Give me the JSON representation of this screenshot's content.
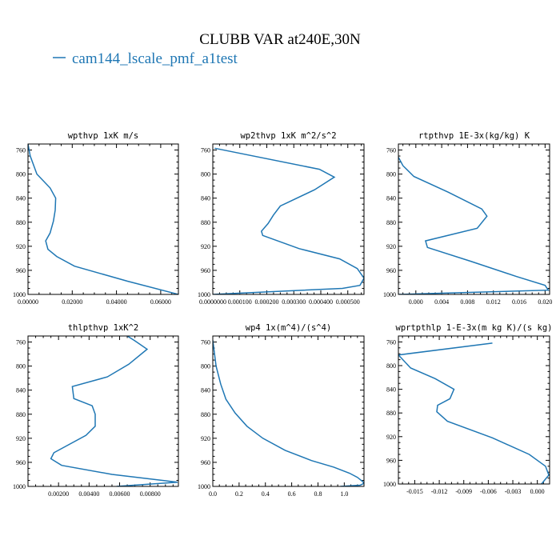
{
  "figure": {
    "title": "CLUBB VAR at240E,30N",
    "legend_label": "cam144_lscale_pmf_a1test",
    "legend_color": "#1f77b4"
  },
  "chart_data": [
    {
      "type": "line",
      "title": "wpthvp  1xK m/s",
      "xlim": [
        0,
        0.068
      ],
      "ylim": [
        1000,
        750
      ],
      "xticks": [
        0.0,
        0.02,
        0.04,
        0.06
      ],
      "xticklabels": [
        "0.00000",
        "0.02000",
        "0.04000",
        "0.06000"
      ],
      "yticks": [
        760,
        800,
        840,
        880,
        920,
        960,
        1000
      ],
      "yticklabels": [
        "760",
        "800",
        "840",
        "880",
        "920",
        "960",
        "1000"
      ],
      "series": [
        {
          "color": "#1f77b4",
          "x": [
            0.0,
            0.001,
            0.004,
            0.01,
            0.0125,
            0.0123,
            0.0115,
            0.01,
            0.008,
            0.009,
            0.013,
            0.021,
            0.045,
            0.068
          ],
          "y": [
            750,
            770,
            800,
            823,
            840,
            860,
            878,
            898,
            911,
            925,
            937,
            953,
            978,
            1000
          ]
        }
      ]
    },
    {
      "type": "line",
      "title": "wp2thvp  1xK m^2/s^2",
      "xlim": [
        0,
        0.00056
      ],
      "ylim": [
        1000,
        750
      ],
      "xticks": [
        0,
        0.0001,
        0.0002,
        0.0003,
        0.0004,
        0.0005
      ],
      "xticklabels": [
        "0.0000000",
        "0.000100",
        "0.000200",
        "0.000300",
        "0.000400",
        "0.000500"
      ],
      "yticks": [
        760,
        800,
        840,
        880,
        920,
        960,
        1000
      ],
      "yticklabels": [
        "760",
        "800",
        "840",
        "880",
        "920",
        "960",
        "1000"
      ],
      "series": [
        {
          "color": "#1f77b4",
          "x": [
            7e-06,
            0.000395,
            0.00045,
            0.000377,
            0.00025,
            0.000225,
            0.000205,
            0.00018,
            0.000185,
            0.00032,
            0.00047,
            0.000535,
            0.00056,
            0.000545,
            0.00048,
            0.0
          ],
          "y": [
            757,
            792,
            805,
            826,
            853,
            868,
            882,
            895,
            902,
            924,
            941,
            957,
            973,
            985,
            990,
            1000
          ]
        }
      ]
    },
    {
      "type": "line",
      "title": "rtpthvp  1E-3x(kg/kg) K",
      "xlim": [
        -0.0027,
        0.0207
      ],
      "ylim": [
        1000,
        750
      ],
      "xticks": [
        0.0,
        0.004,
        0.008,
        0.012,
        0.016,
        0.02
      ],
      "xticklabels": [
        "0.000",
        "0.004",
        "0.008",
        "0.012",
        "0.016",
        "0.020"
      ],
      "yticks": [
        760,
        800,
        840,
        880,
        920,
        960,
        1000
      ],
      "yticklabels": [
        "760",
        "800",
        "840",
        "880",
        "920",
        "960",
        "1000"
      ],
      "series": [
        {
          "color": "#1f77b4",
          "x": [
            -0.0027,
            -0.002,
            -0.0003,
            0.005,
            0.0102,
            0.011,
            0.0095,
            0.0015,
            0.0018,
            0.0085,
            0.0155,
            0.02,
            0.0205,
            -0.0027
          ],
          "y": [
            772,
            786,
            804,
            830,
            858,
            870,
            890,
            911,
            922,
            945,
            970,
            985,
            993,
            1000
          ]
        }
      ]
    },
    {
      "type": "line",
      "title": "thlpthvp  1xK^2",
      "xlim": [
        0,
        0.00985
      ],
      "ylim": [
        1000,
        750
      ],
      "xticks": [
        0.002,
        0.004,
        0.006,
        0.008
      ],
      "xticklabels": [
        "0.00200",
        "0.00400",
        "0.00600",
        "0.00800"
      ],
      "yticks": [
        760,
        800,
        840,
        880,
        920,
        960,
        1000
      ],
      "yticklabels": [
        "760",
        "800",
        "840",
        "880",
        "920",
        "960",
        "1000"
      ],
      "series": [
        {
          "color": "#1f77b4",
          "x": [
            0.0065,
            0.007,
            0.0078,
            0.0066,
            0.0052,
            0.0029,
            0.003,
            0.0042,
            0.0044,
            0.0044,
            0.0038,
            0.0017,
            0.0015,
            0.0022,
            0.0055,
            0.0098,
            0.0058
          ],
          "y": [
            750,
            758,
            772,
            797,
            818,
            834,
            854,
            866,
            880,
            900,
            915,
            944,
            954,
            965,
            980,
            993,
            1000
          ]
        }
      ]
    },
    {
      "type": "line",
      "title": "wp4  1x(m^4)/(s^4)",
      "xlim": [
        0,
        1.15
      ],
      "ylim": [
        1000,
        750
      ],
      "xticks": [
        0.0,
        0.2,
        0.4,
        0.6,
        0.8,
        1.0
      ],
      "xticklabels": [
        "0.0",
        "0.2",
        "0.4",
        "0.6",
        "0.8",
        "1.0"
      ],
      "yticks": [
        760,
        800,
        840,
        880,
        920,
        960,
        1000
      ],
      "yticklabels": [
        "760",
        "800",
        "840",
        "880",
        "920",
        "960",
        "1000"
      ],
      "series": [
        {
          "color": "#1f77b4",
          "x": [
            0.0,
            0.025,
            0.06,
            0.1,
            0.17,
            0.26,
            0.38,
            0.55,
            0.75,
            0.92,
            1.04,
            1.1,
            1.14,
            1.15,
            1.12,
            0.97
          ],
          "y": [
            757,
            800,
            830,
            855,
            878,
            900,
            920,
            940,
            957,
            968,
            978,
            985,
            992,
            995,
            998,
            1000
          ]
        }
      ]
    },
    {
      "type": "line",
      "title": "wprtpthlp  1-E-3x(m kg K)/(s kg)",
      "xlim": [
        -0.017,
        0.0015
      ],
      "ylim": [
        1000,
        750
      ],
      "xticks": [
        -0.015,
        -0.012,
        -0.009,
        -0.006,
        -0.003,
        0.0
      ],
      "xticklabels": [
        "-0.015",
        "-0.012",
        "-0.009",
        "-0.006",
        "-0.003",
        "0.000"
      ],
      "yticks": [
        760,
        800,
        840,
        880,
        920,
        960,
        1000
      ],
      "yticklabels": [
        "760",
        "800",
        "840",
        "880",
        "920",
        "960",
        "1000"
      ],
      "series": [
        {
          "color": "#1f77b4",
          "x": [
            -0.0055,
            -0.017,
            -0.0155,
            -0.0125,
            -0.0102,
            -0.0107,
            -0.0122,
            -0.0123,
            -0.011,
            -0.0055,
            -0.001,
            0.001,
            0.0014,
            0.0005
          ],
          "y": [
            762,
            782,
            804,
            822,
            840,
            856,
            867,
            878,
            894,
            922,
            950,
            970,
            985,
            1000
          ]
        }
      ]
    }
  ]
}
